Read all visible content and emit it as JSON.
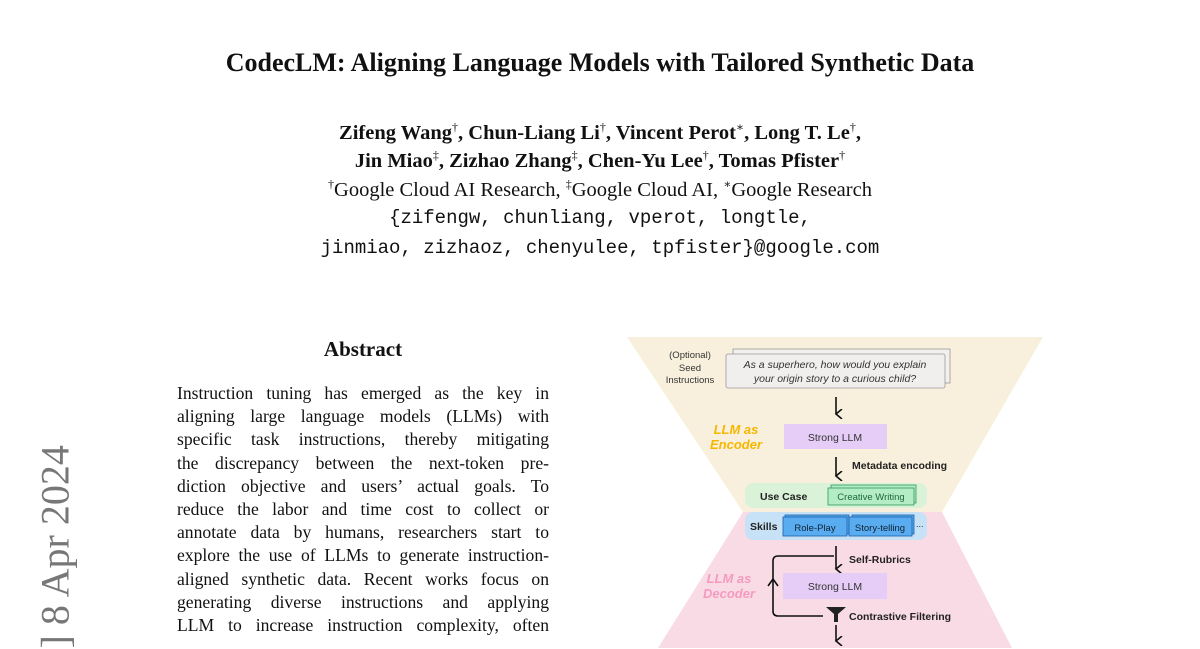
{
  "title": "CodecLM: Aligning Language Models with Tailored Synthetic Data",
  "authors": {
    "line1": [
      {
        "name": "Zifeng Wang",
        "mark": "†"
      },
      {
        "name": "Chun-Liang Li",
        "mark": "†"
      },
      {
        "name": "Vincent Perot",
        "mark": "∗"
      },
      {
        "name": "Long T. Le",
        "mark": "†"
      }
    ],
    "line2": [
      {
        "name": "Jin Miao",
        "mark": "‡"
      },
      {
        "name": "Zizhao Zhang",
        "mark": "‡"
      },
      {
        "name": "Chen-Yu Lee",
        "mark": "†"
      },
      {
        "name": "Tomas Pfister",
        "mark": "†"
      }
    ]
  },
  "affiliations": [
    {
      "mark": "†",
      "name": "Google Cloud AI Research"
    },
    {
      "mark": "‡",
      "name": "Google Cloud AI"
    },
    {
      "mark": "∗",
      "name": "Google Research"
    }
  ],
  "emails": [
    "{zifengw, chunliang, vperot, longtle,",
    "jinmiao, zizhaoz, chenyulee, tpfister}@google.com"
  ],
  "arxiv_side": "] 8 Apr 2024",
  "abstract": {
    "heading": "Abstract",
    "lines": [
      "Instruction tuning has emerged as the key in",
      "aligning large language models (LLMs) with",
      "specific task instructions, thereby mitigating",
      "the discrepancy between the next-token pre-",
      "diction objective and users’ actual goals. To",
      "reduce the labor and time cost to collect or",
      "annotate data by humans, researchers start to",
      "explore the use of LLMs to generate instruction-",
      "aligned synthetic data. Recent works focus on",
      "generating diverse instructions and applying",
      "LLM to increase instruction complexity, often"
    ]
  },
  "figure": {
    "seed_label": [
      "(Optional)",
      "Seed",
      "Instructions"
    ],
    "seed_text": [
      "As a superhero, how would you explain",
      "your origin story to a curious child?"
    ],
    "encoder_label": [
      "LLM as",
      "Encoder"
    ],
    "decoder_label": [
      "LLM as",
      "Decoder"
    ],
    "strong_llm": "Strong LLM",
    "metadata_encoding": "Metadata encoding",
    "use_case_label": "Use Case",
    "use_case_value": "Creative Writing",
    "skills_label": "Skills",
    "skills": [
      "Role-Play",
      "Story-telling"
    ],
    "skills_more": "...",
    "self_rubrics": "Self-Rubrics",
    "contrastive_filtering": "Contrastive Filtering",
    "colors": {
      "encoder": "#f8f0dc",
      "decoder": "#f9dbe5",
      "encoder_text": "#f5b800",
      "decoder_text": "#f59abf",
      "llm_box": "#e6cdf7",
      "use_case_band": "#d9f2d8",
      "use_case_box": "#b4ecc6",
      "skills_band": "#c7e1f6",
      "skill_box": "#58acef"
    }
  }
}
